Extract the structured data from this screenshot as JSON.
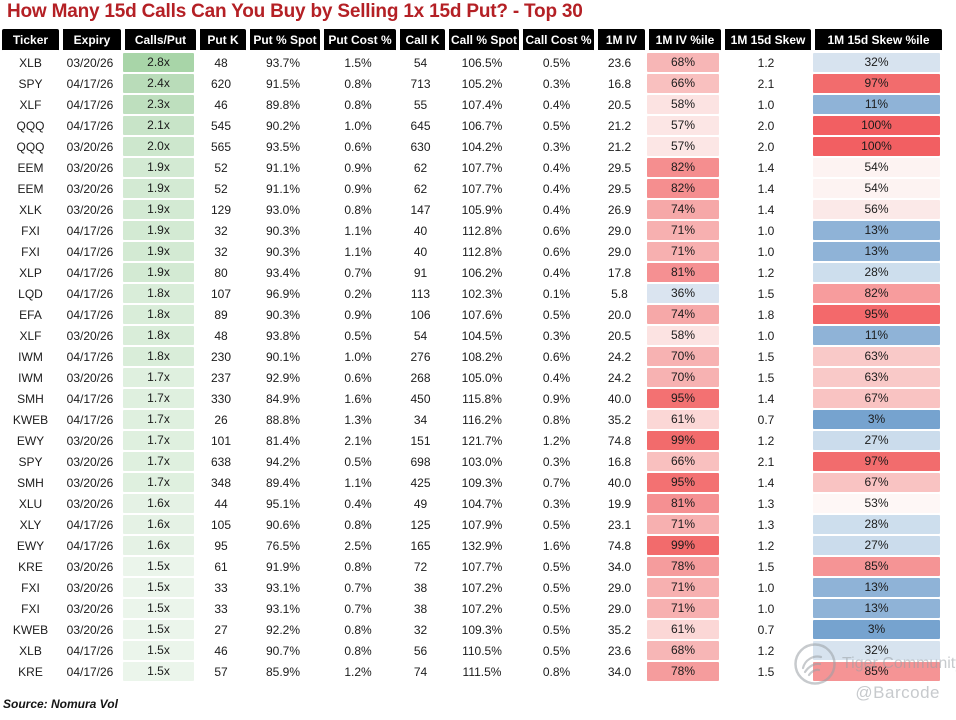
{
  "title": "How Many 15d Calls Can You Buy by Selling 1x 15d Put? - Top 30",
  "source": "Source: Nomura Vol",
  "watermark": {
    "brand": "Tiger Community",
    "handle": "@Barcode"
  },
  "colors": {
    "title": "#B42025",
    "header_bg": "#000000",
    "header_text": "#FFFFFF",
    "green_scale_max": "#A8D5A8",
    "green_scale_min": "#EBF5EB",
    "pct_red_max": "#F25F62",
    "pct_blue_min": "#76A3CF",
    "pct_mid_white": "#FEF7F6"
  },
  "chart_data": {
    "type": "table",
    "title": "How Many 15d Calls Can You Buy by Selling 1x 15d Put? - Top 30",
    "columns": [
      "Ticker",
      "Expiry",
      "Calls/Put",
      "Put K",
      "Put % Spot",
      "Put Cost %",
      "Call K",
      "Call % Spot",
      "Call Cost %",
      "1M IV",
      "1M IV %ile",
      "1M 15d Skew",
      "1M 15d Skew %ile"
    ],
    "column_keys": [
      "ticker",
      "expiry",
      "calls-per-put",
      "put-k",
      "put-pct-spot",
      "put-cost-pct",
      "call-k",
      "call-pct-spot",
      "call-cost-pct",
      "1m-iv",
      "1m-iv-pctile",
      "1m-15d-skew",
      "1m-15d-skew-pctile"
    ],
    "rows": [
      [
        "XLB",
        "03/20/26",
        "2.8x",
        "48",
        "93.7%",
        "1.5%",
        "54",
        "106.5%",
        "0.5%",
        "23.6",
        "68%",
        "1.2",
        "32%"
      ],
      [
        "SPY",
        "04/17/26",
        "2.4x",
        "620",
        "91.5%",
        "0.8%",
        "713",
        "105.2%",
        "0.3%",
        "16.8",
        "66%",
        "2.1",
        "97%"
      ],
      [
        "XLF",
        "04/17/26",
        "2.3x",
        "46",
        "89.8%",
        "0.8%",
        "55",
        "107.4%",
        "0.4%",
        "20.5",
        "58%",
        "1.0",
        "11%"
      ],
      [
        "QQQ",
        "04/17/26",
        "2.1x",
        "545",
        "90.2%",
        "1.0%",
        "645",
        "106.7%",
        "0.5%",
        "21.2",
        "57%",
        "2.0",
        "100%"
      ],
      [
        "QQQ",
        "03/20/26",
        "2.0x",
        "565",
        "93.5%",
        "0.6%",
        "630",
        "104.2%",
        "0.3%",
        "21.2",
        "57%",
        "2.0",
        "100%"
      ],
      [
        "EEM",
        "03/20/26",
        "1.9x",
        "52",
        "91.1%",
        "0.9%",
        "62",
        "107.7%",
        "0.4%",
        "29.5",
        "82%",
        "1.4",
        "54%"
      ],
      [
        "EEM",
        "03/20/26",
        "1.9x",
        "52",
        "91.1%",
        "0.9%",
        "62",
        "107.7%",
        "0.4%",
        "29.5",
        "82%",
        "1.4",
        "54%"
      ],
      [
        "XLK",
        "03/20/26",
        "1.9x",
        "129",
        "93.0%",
        "0.8%",
        "147",
        "105.9%",
        "0.4%",
        "26.9",
        "74%",
        "1.4",
        "56%"
      ],
      [
        "FXI",
        "04/17/26",
        "1.9x",
        "32",
        "90.3%",
        "1.1%",
        "40",
        "112.8%",
        "0.6%",
        "29.0",
        "71%",
        "1.0",
        "13%"
      ],
      [
        "FXI",
        "04/17/26",
        "1.9x",
        "32",
        "90.3%",
        "1.1%",
        "40",
        "112.8%",
        "0.6%",
        "29.0",
        "71%",
        "1.0",
        "13%"
      ],
      [
        "XLP",
        "04/17/26",
        "1.9x",
        "80",
        "93.4%",
        "0.7%",
        "91",
        "106.2%",
        "0.4%",
        "17.8",
        "81%",
        "1.2",
        "28%"
      ],
      [
        "LQD",
        "04/17/26",
        "1.8x",
        "107",
        "96.9%",
        "0.2%",
        "113",
        "102.3%",
        "0.1%",
        "5.8",
        "36%",
        "1.5",
        "82%"
      ],
      [
        "EFA",
        "04/17/26",
        "1.8x",
        "89",
        "90.3%",
        "0.9%",
        "106",
        "107.6%",
        "0.5%",
        "20.0",
        "74%",
        "1.8",
        "95%"
      ],
      [
        "XLF",
        "03/20/26",
        "1.8x",
        "48",
        "93.8%",
        "0.5%",
        "54",
        "104.5%",
        "0.3%",
        "20.5",
        "58%",
        "1.0",
        "11%"
      ],
      [
        "IWM",
        "04/17/26",
        "1.8x",
        "230",
        "90.1%",
        "1.0%",
        "276",
        "108.2%",
        "0.6%",
        "24.2",
        "70%",
        "1.5",
        "63%"
      ],
      [
        "IWM",
        "03/20/26",
        "1.7x",
        "237",
        "92.9%",
        "0.6%",
        "268",
        "105.0%",
        "0.4%",
        "24.2",
        "70%",
        "1.5",
        "63%"
      ],
      [
        "SMH",
        "04/17/26",
        "1.7x",
        "330",
        "84.9%",
        "1.6%",
        "450",
        "115.8%",
        "0.9%",
        "40.0",
        "95%",
        "1.4",
        "67%"
      ],
      [
        "KWEB",
        "04/17/26",
        "1.7x",
        "26",
        "88.8%",
        "1.3%",
        "34",
        "116.2%",
        "0.8%",
        "35.2",
        "61%",
        "0.7",
        "3%"
      ],
      [
        "EWY",
        "03/20/26",
        "1.7x",
        "101",
        "81.4%",
        "2.1%",
        "151",
        "121.7%",
        "1.2%",
        "74.8",
        "99%",
        "1.2",
        "27%"
      ],
      [
        "SPY",
        "03/20/26",
        "1.7x",
        "638",
        "94.2%",
        "0.5%",
        "698",
        "103.0%",
        "0.3%",
        "16.8",
        "66%",
        "2.1",
        "97%"
      ],
      [
        "SMH",
        "03/20/26",
        "1.7x",
        "348",
        "89.4%",
        "1.1%",
        "425",
        "109.3%",
        "0.7%",
        "40.0",
        "95%",
        "1.4",
        "67%"
      ],
      [
        "XLU",
        "03/20/26",
        "1.6x",
        "44",
        "95.1%",
        "0.4%",
        "49",
        "104.7%",
        "0.3%",
        "19.9",
        "81%",
        "1.3",
        "53%"
      ],
      [
        "XLY",
        "04/17/26",
        "1.6x",
        "105",
        "90.6%",
        "0.8%",
        "125",
        "107.9%",
        "0.5%",
        "23.1",
        "71%",
        "1.3",
        "28%"
      ],
      [
        "EWY",
        "04/17/26",
        "1.6x",
        "95",
        "76.5%",
        "2.5%",
        "165",
        "132.9%",
        "1.6%",
        "74.8",
        "99%",
        "1.2",
        "27%"
      ],
      [
        "KRE",
        "03/20/26",
        "1.5x",
        "61",
        "91.9%",
        "0.8%",
        "72",
        "107.7%",
        "0.5%",
        "34.0",
        "78%",
        "1.5",
        "85%"
      ],
      [
        "FXI",
        "03/20/26",
        "1.5x",
        "33",
        "93.1%",
        "0.7%",
        "38",
        "107.2%",
        "0.5%",
        "29.0",
        "71%",
        "1.0",
        "13%"
      ],
      [
        "FXI",
        "03/20/26",
        "1.5x",
        "33",
        "93.1%",
        "0.7%",
        "38",
        "107.2%",
        "0.5%",
        "29.0",
        "71%",
        "1.0",
        "13%"
      ],
      [
        "KWEB",
        "03/20/26",
        "1.5x",
        "27",
        "92.2%",
        "0.8%",
        "32",
        "109.3%",
        "0.5%",
        "35.2",
        "61%",
        "0.7",
        "3%"
      ],
      [
        "XLB",
        "04/17/26",
        "1.5x",
        "46",
        "90.7%",
        "0.8%",
        "56",
        "110.5%",
        "0.5%",
        "23.6",
        "68%",
        "1.2",
        "32%"
      ],
      [
        "KRE",
        "04/17/26",
        "1.5x",
        "57",
        "85.9%",
        "1.2%",
        "74",
        "111.5%",
        "0.8%",
        "34.0",
        "78%",
        "1.5",
        "85%"
      ]
    ],
    "cell_fills": [
      {
        "2": "#A8D5A8",
        "10": "#F7B6B6",
        "12": "#D7E3EF"
      },
      {
        "2": "#B9DCB9",
        "10": "#F9C0BF",
        "12": "#F26C6D"
      },
      {
        "2": "#BEDFBE",
        "10": "#FCE3E2",
        "12": "#8FB3D7"
      },
      {
        "2": "#C8E4C8",
        "10": "#FCE6E5",
        "12": "#F25F62"
      },
      {
        "2": "#CDE7CD",
        "10": "#FCE6E5",
        "12": "#F25F62"
      },
      {
        "2": "#D3EAD3",
        "10": "#F58E8F",
        "12": "#FDF3F2"
      },
      {
        "2": "#D3EAD3",
        "10": "#F58E8F",
        "12": "#FDF3F2"
      },
      {
        "2": "#D3EAD3",
        "10": "#F6A8A8",
        "12": "#FBE9E8"
      },
      {
        "2": "#D3EAD3",
        "10": "#F7B0B0",
        "12": "#8FB3D7"
      },
      {
        "2": "#D3EAD3",
        "10": "#F7B0B0",
        "12": "#8FB3D7"
      },
      {
        "2": "#D3EAD3",
        "10": "#F59092",
        "12": "#CDDEED"
      },
      {
        "2": "#D9EDD9",
        "10": "#DAE4F0",
        "12": "#F79C9D"
      },
      {
        "2": "#D9EDD9",
        "10": "#F6A8A8",
        "12": "#F3696B"
      },
      {
        "2": "#D9EDD9",
        "10": "#FCE3E2",
        "12": "#8FB3D7"
      },
      {
        "2": "#D9EDD9",
        "10": "#F7B2B2",
        "12": "#F9C9C8"
      },
      {
        "2": "#DFF0DF",
        "10": "#F7B2B2",
        "12": "#F9C9C8"
      },
      {
        "2": "#DFF0DF",
        "10": "#F37172",
        "12": "#F9C3C2"
      },
      {
        "2": "#DFF0DF",
        "10": "#FBD7D6",
        "12": "#76A3CF"
      },
      {
        "2": "#DFF0DF",
        "10": "#F26B6C",
        "12": "#CBDCEC"
      },
      {
        "2": "#DFF0DF",
        "10": "#F9C0BF",
        "12": "#F26C6D"
      },
      {
        "2": "#DFF0DF",
        "10": "#F37172",
        "12": "#F9C3C2"
      },
      {
        "2": "#E5F2E5",
        "10": "#F59092",
        "12": "#FEF7F6"
      },
      {
        "2": "#E5F2E5",
        "10": "#F7B0B0",
        "12": "#CDDEED"
      },
      {
        "2": "#E5F2E5",
        "10": "#F26B6C",
        "12": "#CBDCEC"
      },
      {
        "2": "#EBF5EB",
        "10": "#F59C9D",
        "12": "#F59495"
      },
      {
        "2": "#EBF5EB",
        "10": "#F7B0B0",
        "12": "#8FB3D7"
      },
      {
        "2": "#EBF5EB",
        "10": "#F7B0B0",
        "12": "#8FB3D7"
      },
      {
        "2": "#EBF5EB",
        "10": "#FBD7D6",
        "12": "#76A3CF"
      },
      {
        "2": "#EBF5EB",
        "10": "#F7B6B6",
        "12": "#D7E3EF"
      },
      {
        "2": "#EBF5EB",
        "10": "#F59C9D",
        "12": "#F59495"
      }
    ]
  }
}
